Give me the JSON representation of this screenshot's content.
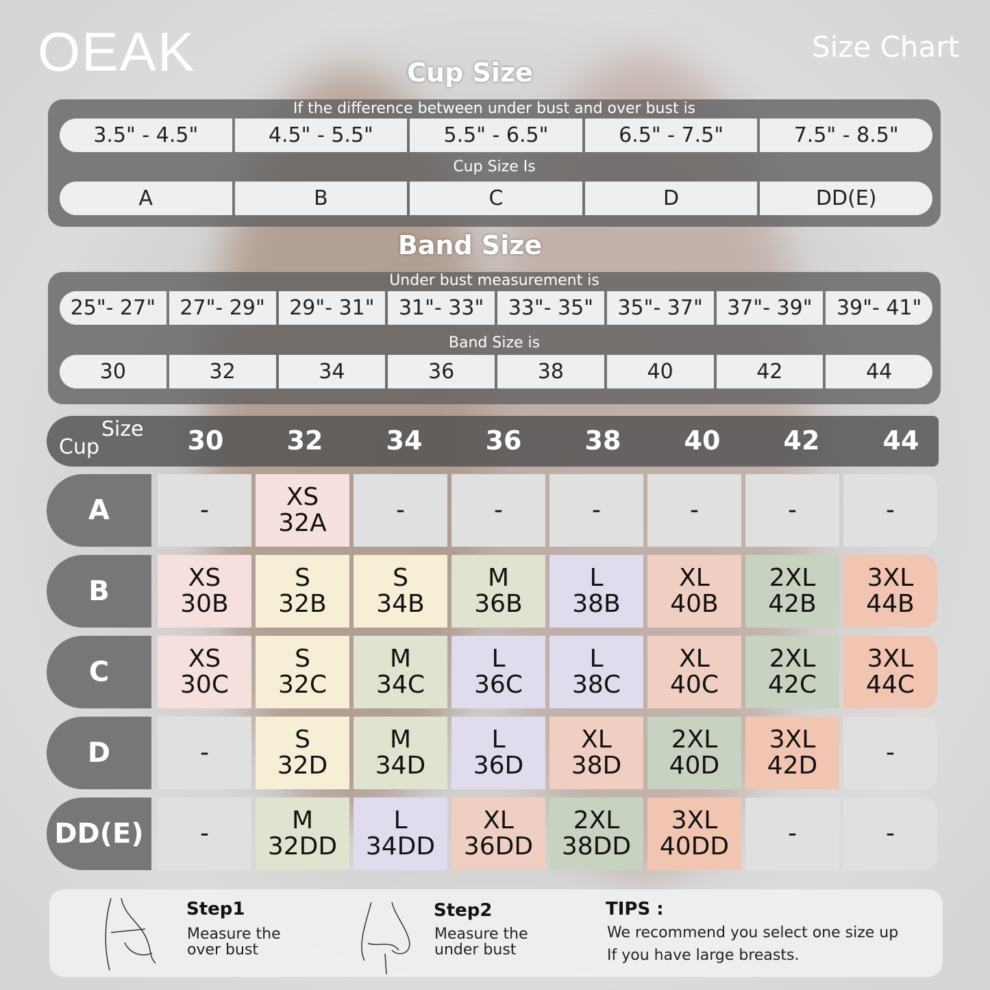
{
  "brand": "OEAK",
  "title": "Size Chart",
  "cup_section": {
    "heading": "Cup Size",
    "caption1": "If the  difference between under bust and over bust is",
    "differences": [
      "3.5\" -  4.5\"",
      "4.5\" -  5.5\"",
      "5.5\" -  6.5\"",
      "6.5\" -  7.5\"",
      "7.5\" -  8.5\""
    ],
    "caption2": "Cup Size Is",
    "cups": [
      "A",
      "B",
      "C",
      "D",
      "DD(E)"
    ]
  },
  "band_section": {
    "heading": "Band Size",
    "caption1": "Under bust measurement is",
    "measurements": [
      "25\"- 27\"",
      "27\"- 29\"",
      "29\"- 31\"",
      "31\"- 33\"",
      "33\"- 35\"",
      "35\"- 37\"",
      "37\"- 39\"",
      "39\"- 41\""
    ],
    "caption2": "Band Size is",
    "bands": [
      "30",
      "32",
      "34",
      "36",
      "38",
      "40",
      "42",
      "44"
    ]
  },
  "table": {
    "cup_label": "Cup",
    "size_label": "Size",
    "columns": [
      "30",
      "32",
      "34",
      "36",
      "38",
      "40",
      "42",
      "44"
    ],
    "rows": [
      {
        "cup": "A",
        "cells": [
          [
            "-"
          ],
          [
            "XS",
            "32A"
          ],
          [
            "-"
          ],
          [
            "-"
          ],
          [
            "-"
          ],
          [
            "-"
          ],
          [
            "-"
          ],
          [
            "-"
          ]
        ]
      },
      {
        "cup": "B",
        "cells": [
          [
            "XS",
            "30B"
          ],
          [
            "S",
            "32B"
          ],
          [
            "S",
            "34B"
          ],
          [
            "M",
            "36B"
          ],
          [
            "L",
            "38B"
          ],
          [
            "XL",
            "40B"
          ],
          [
            "2XL",
            "42B"
          ],
          [
            "3XL",
            "44B"
          ]
        ]
      },
      {
        "cup": "C",
        "cells": [
          [
            "XS",
            "30C"
          ],
          [
            "S",
            "32C"
          ],
          [
            "M",
            "34C"
          ],
          [
            "L",
            "36C"
          ],
          [
            "L",
            "38C"
          ],
          [
            "XL",
            "40C"
          ],
          [
            "2XL",
            "42C"
          ],
          [
            "3XL",
            "44C"
          ]
        ]
      },
      {
        "cup": "D",
        "cells": [
          [
            "-"
          ],
          [
            "S",
            "32D"
          ],
          [
            "M",
            "34D"
          ],
          [
            "L",
            "36D"
          ],
          [
            "XL",
            "38D"
          ],
          [
            "2XL",
            "40D"
          ],
          [
            "3XL",
            "42D"
          ],
          [
            "-"
          ]
        ]
      },
      {
        "cup": "DD(E)",
        "cells": [
          [
            "-"
          ],
          [
            "M",
            "32DD"
          ],
          [
            "L",
            "34DD"
          ],
          [
            "XL",
            "36DD"
          ],
          [
            "2XL",
            "38DD"
          ],
          [
            "3XL",
            "40DD"
          ],
          [
            "-"
          ],
          [
            "-"
          ]
        ]
      }
    ]
  },
  "size_colors": {
    "-": "#e0e0e0",
    "XS": "#f6e0de",
    "S": "#f6efd6",
    "M": "#dfe3cf",
    "L": "#e0dcee",
    "XL": "#f0cfc2",
    "2XL": "#c8d2c1",
    "3XL": "#f2c5b2"
  },
  "footer": {
    "step1_title": "Step1",
    "step1_line1": "Measure the",
    "step1_line2": "over bust",
    "step2_title": "Step2",
    "step2_line1": "Measure the",
    "step2_line2": "under bust",
    "tips_title": "TIPS :",
    "tips_line1": "We recommend you select one size up",
    "tips_line2": "If you have large breasts."
  }
}
